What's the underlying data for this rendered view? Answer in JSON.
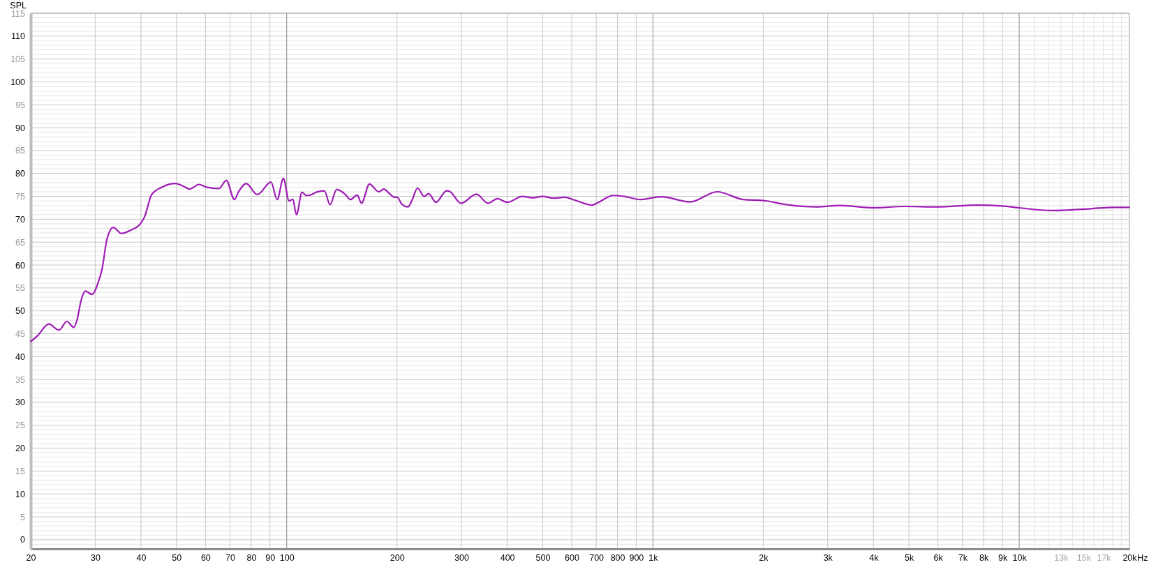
{
  "chart_data": {
    "type": "line",
    "ylabel": "SPL",
    "xlabel": "Hz",
    "log": "x",
    "grid": true,
    "xlim": [
      20,
      20000
    ],
    "ylim": [
      -2,
      115
    ],
    "xticks": [
      20,
      30,
      40,
      50,
      60,
      70,
      80,
      90,
      100,
      200,
      300,
      400,
      500,
      600,
      700,
      800,
      900,
      {
        "value": 1000,
        "label": "1k"
      },
      {
        "value": 2000,
        "label": "2k"
      },
      {
        "value": 3000,
        "label": "3k"
      },
      {
        "value": 4000,
        "label": "4k"
      },
      {
        "value": 5000,
        "label": "5k"
      },
      {
        "value": 6000,
        "label": "6k"
      },
      {
        "value": 7000,
        "label": "7k"
      },
      {
        "value": 8000,
        "label": "8k"
      },
      {
        "value": 9000,
        "label": "9k"
      },
      {
        "value": 10000,
        "label": "10k"
      },
      {
        "value": 11000,
        "label": null
      },
      {
        "value": 12000,
        "label": null
      },
      {
        "value": 13000,
        "label": "13k"
      },
      {
        "value": 14000,
        "label": null
      },
      {
        "value": 15000,
        "label": "15k"
      },
      {
        "value": 16000,
        "label": null
      },
      {
        "value": 17000,
        "label": "17k"
      },
      {
        "value": 18000,
        "label": null
      },
      {
        "value": 19000,
        "label": null
      },
      {
        "value": 20000,
        "label": "20k"
      }
    ],
    "yticks": [
      {
        "value": -1,
        "label": null
      },
      0,
      {
        "value": 1,
        "label": null
      },
      {
        "value": 2,
        "label": null
      },
      {
        "value": 3,
        "label": null
      },
      {
        "value": 4,
        "label": null
      },
      5,
      {
        "value": 6,
        "label": null
      },
      {
        "value": 7,
        "label": null
      },
      {
        "value": 8,
        "label": null
      },
      {
        "value": 9,
        "label": null
      },
      10,
      {
        "value": 11,
        "label": null
      },
      {
        "value": 12,
        "label": null
      },
      {
        "value": 13,
        "label": null
      },
      {
        "value": 14,
        "label": null
      },
      15,
      {
        "value": 16,
        "label": null
      },
      {
        "value": 17,
        "label": null
      },
      {
        "value": 18,
        "label": null
      },
      {
        "value": 19,
        "label": null
      },
      20,
      {
        "value": 21,
        "label": null
      },
      {
        "value": 22,
        "label": null
      },
      {
        "value": 23,
        "label": null
      },
      {
        "value": 24,
        "label": null
      },
      25,
      {
        "value": 26,
        "label": null
      },
      {
        "value": 27,
        "label": null
      },
      {
        "value": 28,
        "label": null
      },
      {
        "value": 29,
        "label": null
      },
      30,
      {
        "value": 31,
        "label": null
      },
      {
        "value": 32,
        "label": null
      },
      {
        "value": 33,
        "label": null
      },
      {
        "value": 34,
        "label": null
      },
      35,
      {
        "value": 36,
        "label": null
      },
      {
        "value": 37,
        "label": null
      },
      {
        "value": 38,
        "label": null
      },
      {
        "value": 39,
        "label": null
      },
      40,
      {
        "value": 41,
        "label": null
      },
      {
        "value": 42,
        "label": null
      },
      {
        "value": 43,
        "label": null
      },
      {
        "value": 44,
        "label": null
      },
      45,
      {
        "value": 46,
        "label": null
      },
      {
        "value": 47,
        "label": null
      },
      {
        "value": 48,
        "label": null
      },
      {
        "value": 49,
        "label": null
      },
      50,
      {
        "value": 51,
        "label": null
      },
      {
        "value": 52,
        "label": null
      },
      {
        "value": 53,
        "label": null
      },
      {
        "value": 54,
        "label": null
      },
      55,
      {
        "value": 56,
        "label": null
      },
      {
        "value": 57,
        "label": null
      },
      {
        "value": 58,
        "label": null
      },
      {
        "value": 59,
        "label": null
      },
      60,
      {
        "value": 61,
        "label": null
      },
      {
        "value": 62,
        "label": null
      },
      {
        "value": 63,
        "label": null
      },
      {
        "value": 64,
        "label": null
      },
      65,
      {
        "value": 66,
        "label": null
      },
      {
        "value": 67,
        "label": null
      },
      {
        "value": 68,
        "label": null
      },
      {
        "value": 69,
        "label": null
      },
      70,
      {
        "value": 71,
        "label": null
      },
      {
        "value": 72,
        "label": null
      },
      {
        "value": 73,
        "label": null
      },
      {
        "value": 74,
        "label": null
      },
      75,
      {
        "value": 76,
        "label": null
      },
      {
        "value": 77,
        "label": null
      },
      {
        "value": 78,
        "label": null
      },
      {
        "value": 79,
        "label": null
      },
      80,
      {
        "value": 81,
        "label": null
      },
      {
        "value": 82,
        "label": null
      },
      {
        "value": 83,
        "label": null
      },
      {
        "value": 84,
        "label": null
      },
      85,
      {
        "value": 86,
        "label": null
      },
      {
        "value": 87,
        "label": null
      },
      {
        "value": 88,
        "label": null
      },
      {
        "value": 89,
        "label": null
      },
      90,
      {
        "value": 91,
        "label": null
      },
      {
        "value": 92,
        "label": null
      },
      {
        "value": 93,
        "label": null
      },
      {
        "value": 94,
        "label": null
      },
      95,
      {
        "value": 96,
        "label": null
      },
      {
        "value": 97,
        "label": null
      },
      {
        "value": 98,
        "label": null
      },
      {
        "value": 99,
        "label": null
      },
      100,
      {
        "value": 101,
        "label": null
      },
      {
        "value": 102,
        "label": null
      },
      {
        "value": 103,
        "label": null
      },
      {
        "value": 104,
        "label": null
      },
      105,
      {
        "value": 106,
        "label": null
      },
      {
        "value": 107,
        "label": null
      },
      {
        "value": 108,
        "label": null
      },
      {
        "value": 109,
        "label": null
      },
      110,
      {
        "value": 111,
        "label": null
      },
      {
        "value": 112,
        "label": null
      },
      {
        "value": 113,
        "label": null
      },
      {
        "value": 114,
        "label": null
      },
      115
    ],
    "x": [
      20,
      20.9,
      22.4,
      23.9,
      25.1,
      26.2,
      26.8,
      27.4,
      28.2,
      29.4,
      30.6,
      31.3,
      32.3,
      33.6,
      35.4,
      37.5,
      39.9,
      40.9,
      42.8,
      45.6,
      49.7,
      52.0,
      54.3,
      57.6,
      60.4,
      65.3,
      68.4,
      72.0,
      73.9,
      77.5,
      83.1,
      90.6,
      94.2,
      97.9,
      101.5,
      103.9,
      106.3,
      110.1,
      113.2,
      117.1,
      120.3,
      126.7,
      131.3,
      136.9,
      144.6,
      149.2,
      155.8,
      160.0,
      168.2,
      178.4,
      184.1,
      190.9,
      196.8,
      200.4,
      206.2,
      214.4,
      220.5,
      227.5,
      237.4,
      244.2,
      255.5,
      273.2,
      279.6,
      299.1,
      329.7,
      354.6,
      376.3,
      400,
      439.8,
      469.8,
      500,
      534.8,
      573.8,
      610.6,
      681.2,
      714,
      778,
      834.6,
      923.6,
      1055,
      1263,
      1499,
      1766,
      2000,
      2312,
      2794,
      3246,
      4018,
      4854,
      5964,
      7676,
      8994,
      10000,
      12326,
      15636,
      17992,
      20000
    ],
    "series": [
      {
        "color": "#9e1bb5",
        "values": [
          43.3,
          44.6,
          47.1,
          45.8,
          47.7,
          46.4,
          48.2,
          52.0,
          54.3,
          53.6,
          56.3,
          59.0,
          65.6,
          68.2,
          66.9,
          67.6,
          69.1,
          70.5,
          75.4,
          77.0,
          77.8,
          77.3,
          76.6,
          77.6,
          77.0,
          76.7,
          78.5,
          74.3,
          76.0,
          77.8,
          75.4,
          78.1,
          74.3,
          78.9,
          74.0,
          74.4,
          71.0,
          75.9,
          75.2,
          75.4,
          75.9,
          76.2,
          73.2,
          76.5,
          75.4,
          74.3,
          75.3,
          73.5,
          77.7,
          76.0,
          76.6,
          75.6,
          74.8,
          74.8,
          73.3,
          72.7,
          74.4,
          76.8,
          75.0,
          75.6,
          73.7,
          76.2,
          76.0,
          73.5,
          75.5,
          73.5,
          74.5,
          73.7,
          75.0,
          74.7,
          75.0,
          74.6,
          74.8,
          74.2,
          73.1,
          73.8,
          75.2,
          75.0,
          74.3,
          74.9,
          73.8,
          76.0,
          74.3,
          74.1,
          73.2,
          72.7,
          73.0,
          72.5,
          72.8,
          72.7,
          73.1,
          72.9,
          72.5,
          71.9,
          72.3,
          72.6,
          72.6
        ]
      }
    ]
  }
}
